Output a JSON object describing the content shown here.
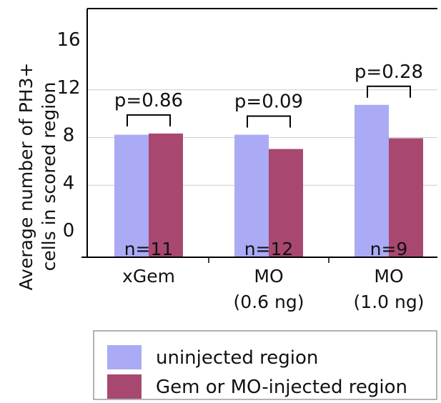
{
  "chart_data": {
    "type": "bar",
    "ylabel_lines": [
      "Average number of PH3+",
      "cells in scored region"
    ],
    "ytick_labels": [
      {
        "value": 16,
        "label": "16"
      },
      {
        "value": 12,
        "label": "12"
      },
      {
        "value": 8,
        "label": "8"
      },
      {
        "value": 4,
        "label": "4"
      },
      {
        "value": 0,
        "label": "0"
      }
    ],
    "categories": [
      {
        "lines": [
          "xGem"
        ]
      },
      {
        "lines": [
          "MO",
          "(0.6 ng)"
        ]
      },
      {
        "lines": [
          "MO",
          "(1.0 ng)"
        ]
      }
    ],
    "series": [
      {
        "name": "uninjected region",
        "color": "#abaaf4",
        "values": [
          8.0,
          8.0,
          10.5
        ]
      },
      {
        "name": "Gem or MO-injected region",
        "color": "#a84871",
        "values": [
          8.1,
          6.8,
          7.7
        ]
      }
    ],
    "annotations": [
      {
        "p_label": "p=0.86",
        "n_label": "n=11"
      },
      {
        "p_label": "p=0.09",
        "n_label": "n=12"
      },
      {
        "p_label": "p=0.28",
        "n_label": "n=9"
      }
    ],
    "grid": true,
    "legend_position": "bottom"
  }
}
